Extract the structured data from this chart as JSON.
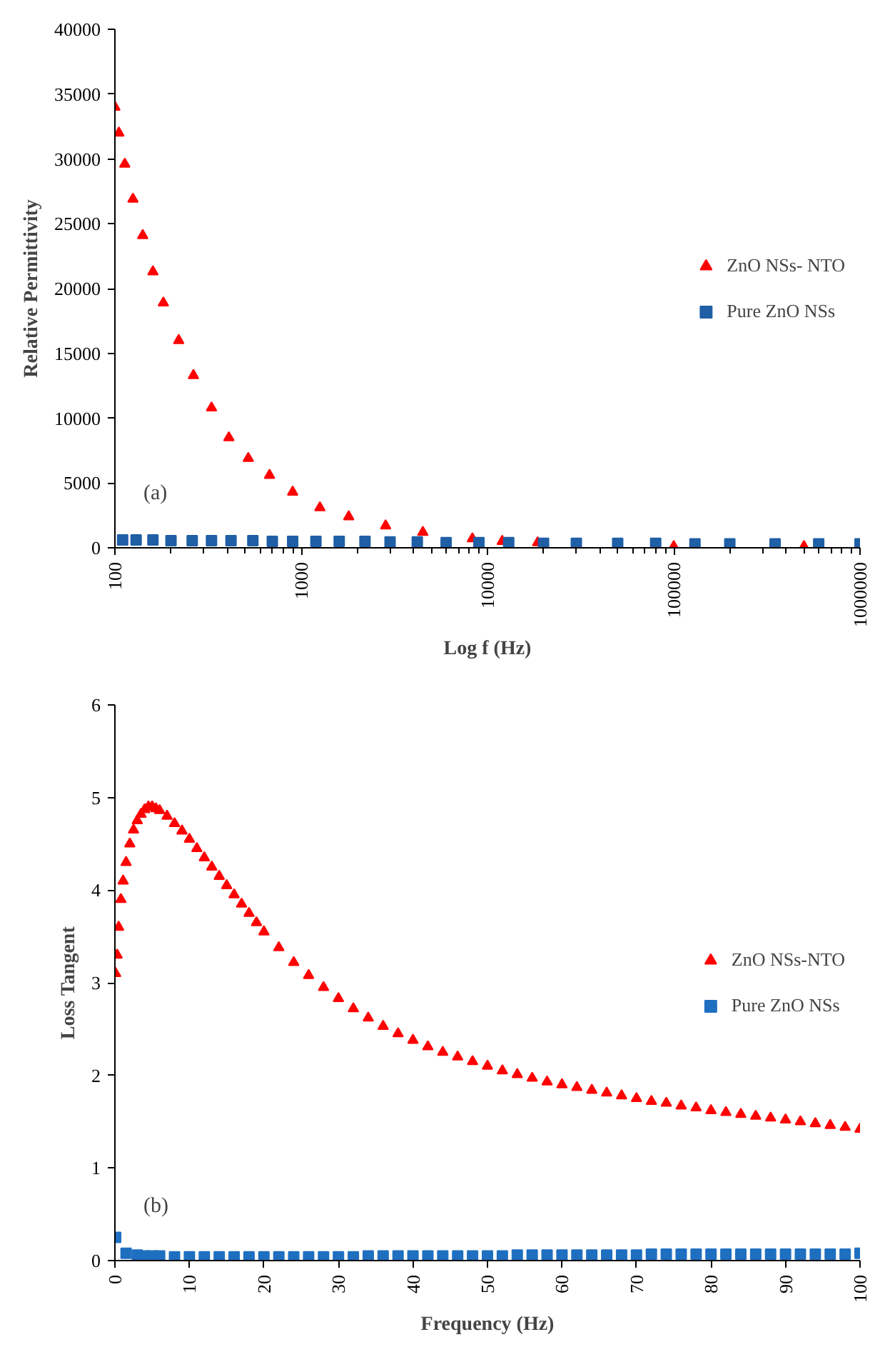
{
  "chart_data": [
    {
      "type": "scatter",
      "xlabel": "Log f (Hz)",
      "ylabel": "Relative Permittivity",
      "log": "x",
      "xlim": [
        100,
        1000000
      ],
      "ylim": [
        0,
        40000
      ],
      "xticks": [
        100,
        1000,
        10000,
        100000,
        1000000
      ],
      "yticks": [
        0,
        5000,
        10000,
        15000,
        20000,
        25000,
        30000,
        35000,
        40000
      ],
      "grid": false,
      "legend": "right",
      "annotations": [
        "(a)"
      ],
      "series": [
        {
          "name": "ZnO NSs- NTO",
          "color": "#ff0000",
          "marker": "triangle",
          "x": [
            100,
            105,
            113,
            125,
            141,
            160,
            182,
            220,
            264,
            330,
            409,
            520,
            676,
            900,
            1260,
            1800,
            2840,
            4500,
            8300,
            12000,
            18600,
            100000,
            500000
          ],
          "values": [
            34000,
            32000,
            29600,
            26900,
            24100,
            21300,
            18900,
            16000,
            13300,
            10800,
            8500,
            6900,
            5600,
            4300,
            3100,
            2400,
            1700,
            1200,
            700,
            500,
            400,
            100,
            100
          ]
        },
        {
          "name": "Pure ZnO NSs",
          "color": "#1f5fa6",
          "marker": "square",
          "x": [
            110,
            130,
            160,
            200,
            260,
            330,
            420,
            550,
            700,
            900,
            1200,
            1600,
            2200,
            3000,
            4200,
            6000,
            9000,
            13000,
            20000,
            30000,
            50000,
            80000,
            130000,
            200000,
            350000,
            600000,
            1000000
          ],
          "values": [
            600,
            600,
            600,
            550,
            550,
            550,
            550,
            550,
            500,
            500,
            500,
            500,
            500,
            450,
            450,
            400,
            400,
            400,
            350,
            350,
            350,
            350,
            300,
            300,
            300,
            300,
            300
          ]
        }
      ]
    },
    {
      "type": "scatter",
      "xlabel": "Frequency (Hz)",
      "ylabel": "Loss Tangent",
      "xlim": [
        0,
        100
      ],
      "ylim": [
        0,
        6
      ],
      "xticks": [
        0,
        10,
        20,
        30,
        40,
        50,
        60,
        70,
        80,
        90,
        100
      ],
      "yticks": [
        0,
        1,
        2,
        3,
        4,
        5,
        6
      ],
      "grid": false,
      "legend": "right",
      "annotations": [
        "(b)"
      ],
      "series": [
        {
          "name": "ZnO NSs-NTO",
          "color": "#ff0000",
          "marker": "triangle",
          "x": [
            0.1,
            0.3,
            0.5,
            0.8,
            1.1,
            1.5,
            2,
            2.5,
            3,
            3.5,
            4,
            4.5,
            5,
            5.5,
            6,
            7,
            8,
            9,
            10,
            11,
            12,
            13,
            14,
            15,
            16,
            17,
            18,
            19,
            20,
            22,
            24,
            26,
            28,
            30,
            32,
            34,
            36,
            38,
            40,
            42,
            44,
            46,
            48,
            50,
            52,
            54,
            56,
            58,
            60,
            62,
            64,
            66,
            68,
            70,
            72,
            74,
            76,
            78,
            80,
            82,
            84,
            86,
            88,
            90,
            92,
            94,
            96,
            98,
            100
          ],
          "values": [
            3.1,
            3.3,
            3.6,
            3.9,
            4.1,
            4.3,
            4.5,
            4.65,
            4.75,
            4.82,
            4.87,
            4.9,
            4.9,
            4.88,
            4.86,
            4.8,
            4.72,
            4.64,
            4.55,
            4.45,
            4.35,
            4.25,
            4.15,
            4.05,
            3.95,
            3.85,
            3.75,
            3.65,
            3.55,
            3.38,
            3.22,
            3.08,
            2.95,
            2.83,
            2.72,
            2.62,
            2.53,
            2.45,
            2.38,
            2.31,
            2.25,
            2.2,
            2.15,
            2.1,
            2.05,
            2.01,
            1.97,
            1.93,
            1.9,
            1.87,
            1.84,
            1.81,
            1.78,
            1.75,
            1.72,
            1.7,
            1.67,
            1.65,
            1.62,
            1.6,
            1.58,
            1.56,
            1.54,
            1.52,
            1.5,
            1.48,
            1.46,
            1.44,
            1.42
          ]
        },
        {
          "name": "Pure ZnO NSs",
          "color": "#1f6fc0",
          "marker": "square",
          "x": [
            0.1,
            1.5,
            3,
            4,
            5,
            6,
            8,
            10,
            12,
            14,
            16,
            18,
            20,
            22,
            24,
            26,
            28,
            30,
            32,
            34,
            36,
            38,
            40,
            42,
            44,
            46,
            48,
            50,
            52,
            54,
            56,
            58,
            60,
            62,
            64,
            66,
            68,
            70,
            72,
            74,
            76,
            78,
            80,
            82,
            84,
            86,
            88,
            90,
            92,
            94,
            96,
            98,
            100
          ],
          "values": [
            0.25,
            0.08,
            0.06,
            0.05,
            0.05,
            0.05,
            0.04,
            0.04,
            0.04,
            0.04,
            0.04,
            0.04,
            0.04,
            0.04,
            0.04,
            0.04,
            0.04,
            0.04,
            0.04,
            0.05,
            0.05,
            0.05,
            0.05,
            0.05,
            0.05,
            0.05,
            0.05,
            0.05,
            0.05,
            0.06,
            0.06,
            0.06,
            0.06,
            0.06,
            0.06,
            0.06,
            0.06,
            0.06,
            0.07,
            0.07,
            0.07,
            0.07,
            0.07,
            0.07,
            0.07,
            0.07,
            0.07,
            0.07,
            0.07,
            0.07,
            0.07,
            0.07,
            0.08
          ]
        }
      ]
    }
  ]
}
